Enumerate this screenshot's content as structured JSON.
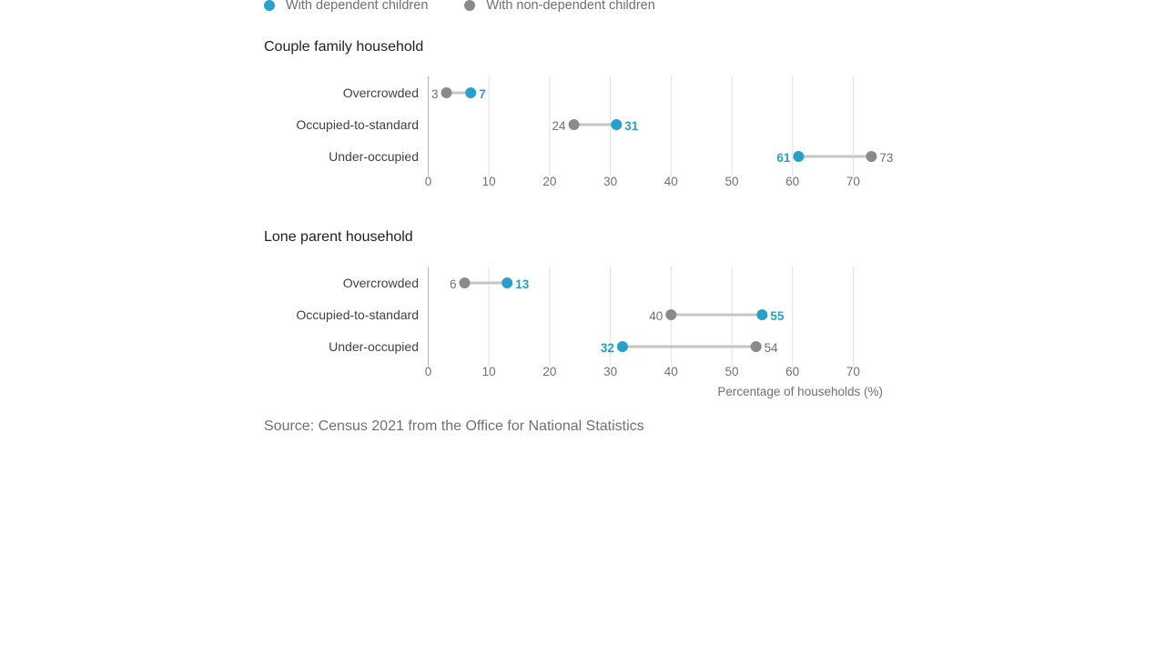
{
  "legend": [
    {
      "label": "With dependent children",
      "color": "#27a0cc"
    },
    {
      "label": "With non-dependent children",
      "color": "#8a8a8a"
    }
  ],
  "source": "Source: Census 2021 from the Office for National Statistics",
  "colors": {
    "dependent": "#27a0cc",
    "non_dependent": "#8a8a8a",
    "connector": "#c6c6c6",
    "grid": "#e2e2e2",
    "axis": "#b3b3b3"
  },
  "chart_data": [
    {
      "type": "dumbbell",
      "title": "Couple family household",
      "categories": [
        "Overcrowded",
        "Occupied-to-standard",
        "Under-occupied"
      ],
      "series": [
        {
          "name": "With dependent children",
          "values": [
            7,
            31,
            61
          ]
        },
        {
          "name": "With non-dependent children",
          "values": [
            3,
            24,
            73
          ]
        }
      ],
      "xlim": [
        0,
        70
      ],
      "xticks": [
        0,
        10,
        20,
        30,
        40,
        50,
        60,
        70
      ],
      "xlabel": "",
      "grid": true
    },
    {
      "type": "dumbbell",
      "title": "Lone parent household",
      "categories": [
        "Overcrowded",
        "Occupied-to-standard",
        "Under-occupied"
      ],
      "series": [
        {
          "name": "With dependent children",
          "values": [
            13,
            55,
            32
          ]
        },
        {
          "name": "With non-dependent children",
          "values": [
            6,
            40,
            54
          ]
        }
      ],
      "xlim": [
        0,
        70
      ],
      "xticks": [
        0,
        10,
        20,
        30,
        40,
        50,
        60,
        70
      ],
      "xlabel": "Percentage of households (%)",
      "grid": true
    }
  ]
}
